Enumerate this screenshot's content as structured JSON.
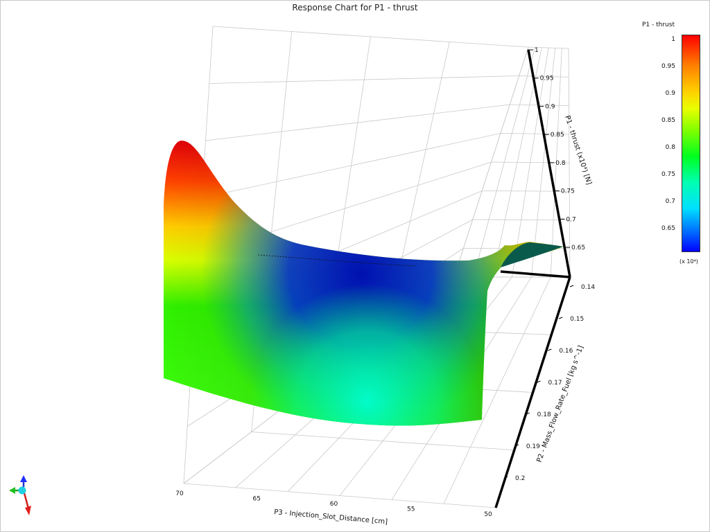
{
  "chart_data": {
    "type": "surface",
    "title": "Response Chart for P1 - thrust",
    "z_label": "P1 - thrust  (x10⁴)  [N]",
    "x_label": "P3 - Injection_Slot_Distance  [cm]",
    "y_label": "P2 - Mass_Flow_Rate_Fuel  [kg s^-1]",
    "x_ticks": [
      "70",
      "65",
      "60",
      "55",
      "50"
    ],
    "y_ticks": [
      "0.14",
      "0.15",
      "0.16",
      "0.17",
      "0.18",
      "0.19",
      "0.2"
    ],
    "z_ticks": [
      "0.65",
      "0.7",
      "0.75",
      "0.8",
      "0.85",
      "0.9",
      "0.95",
      "1"
    ],
    "xlim": [
      50,
      70
    ],
    "ylim": [
      0.14,
      0.2
    ],
    "zlim": [
      0.62,
      1.0
    ],
    "z_multiplier": "x 10⁴",
    "colormap": [
      "#0000ff",
      "#00ffff",
      "#00ff00",
      "#ffff00",
      "#ff0000"
    ],
    "colorbar": {
      "title": "P1 - thrust",
      "ticks": [
        "1",
        "0.95",
        "0.9",
        "0.85",
        "0.8",
        "0.75",
        "0.7",
        "0.65"
      ],
      "unit": "(x 10⁴)",
      "range": [
        0.61,
        1.01
      ]
    }
  }
}
